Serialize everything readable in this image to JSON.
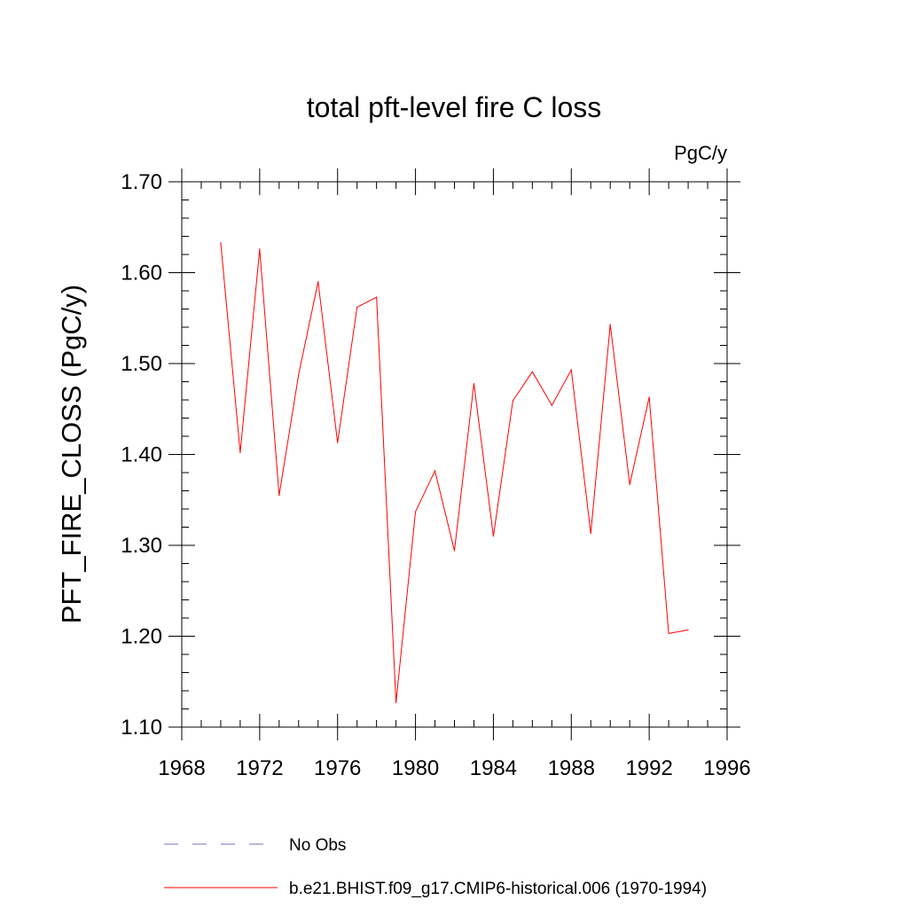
{
  "chart_data": {
    "type": "line",
    "title": "total pft-level fire C loss",
    "units_label": "PgC/y",
    "xlabel": "",
    "ylabel": "PFT_FIRE_CLOSS  (PgC/y)",
    "xlim": [
      1968,
      1996
    ],
    "ylim": [
      1.1,
      1.7
    ],
    "x_ticks": [
      1968,
      1972,
      1976,
      1980,
      1984,
      1988,
      1992,
      1996
    ],
    "x_tick_labels": [
      "1968",
      "1972",
      "1976",
      "1980",
      "1984",
      "1988",
      "1992",
      "1996"
    ],
    "y_ticks": [
      1.1,
      1.2,
      1.3,
      1.4,
      1.5,
      1.6,
      1.7
    ],
    "y_tick_labels": [
      "1.10",
      "1.20",
      "1.30",
      "1.40",
      "1.50",
      "1.60",
      "1.70"
    ],
    "series": [
      {
        "name": "b.e21.BHIST.f09_g17.CMIP6-historical.006 (1970-1994)",
        "color": "#ff0000",
        "x": [
          1970,
          1971,
          1972,
          1973,
          1974,
          1975,
          1976,
          1977,
          1978,
          1979,
          1980,
          1981,
          1982,
          1983,
          1984,
          1985,
          1986,
          1987,
          1988,
          1989,
          1990,
          1991,
          1992,
          1993,
          1994
        ],
        "y": [
          1.633,
          1.402,
          1.626,
          1.355,
          1.488,
          1.59,
          1.413,
          1.562,
          1.573,
          1.127,
          1.337,
          1.382,
          1.294,
          1.478,
          1.31,
          1.459,
          1.491,
          1.454,
          1.493,
          1.313,
          1.543,
          1.367,
          1.463,
          1.203,
          1.207
        ]
      }
    ],
    "legend": [
      {
        "label": "No Obs",
        "style": "dashed",
        "color": "#6f6fc0"
      },
      {
        "label": "b.e21.BHIST.f09_g17.CMIP6-historical.006 (1970-1994)",
        "style": "solid",
        "color": "#ff0000"
      }
    ],
    "legend_placement": "bottom"
  }
}
